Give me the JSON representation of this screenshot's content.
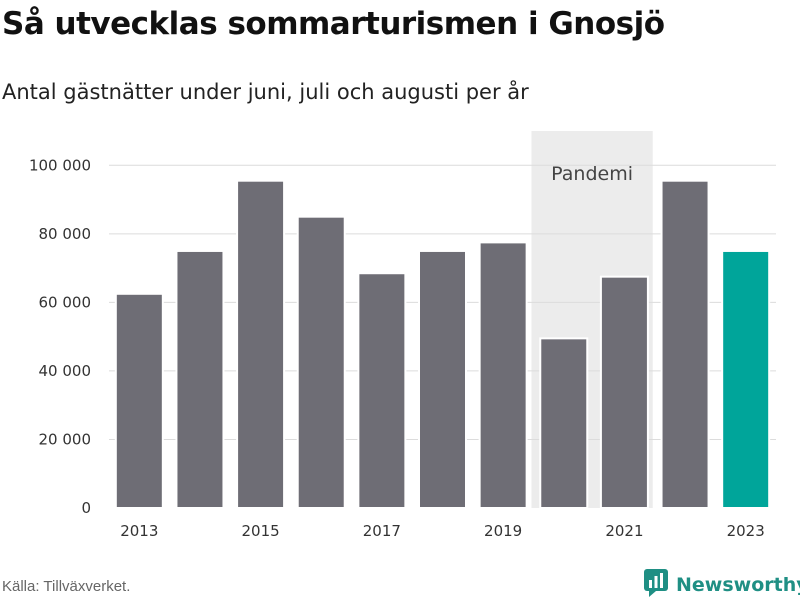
{
  "header": {
    "title": "Så utvecklas sommarturismen i Gnosjö",
    "subtitle": "Antal gästnätter under juni, juli och augusti per år"
  },
  "footer": {
    "source": "Källa: Tillväxverket.",
    "brand": "Newsworthy",
    "brand_icon": "chart-bubble-icon"
  },
  "colors": {
    "bar": "#6e6d75",
    "highlight": "#00a59a",
    "pandemic_band": "#ececec",
    "grid": "#dcdcdc",
    "brand": "#1f8f84"
  },
  "chart_data": {
    "type": "bar",
    "title": "Så utvecklas sommarturismen i Gnosjö",
    "subtitle": "Antal gästnätter under juni, juli och augusti per år",
    "categories": [
      2013,
      2014,
      2015,
      2016,
      2017,
      2018,
      2019,
      2020,
      2021,
      2022,
      2023
    ],
    "values": [
      62500,
      75000,
      95500,
      85000,
      68500,
      75000,
      77500,
      49500,
      67500,
      95500,
      75000
    ],
    "highlight_category": 2023,
    "x_tick_labels": [
      "2013",
      "2015",
      "2017",
      "2019",
      "2021",
      "2023"
    ],
    "y_ticks": [
      0,
      20000,
      40000,
      60000,
      80000,
      100000
    ],
    "y_tick_labels": [
      "0",
      "20 000",
      "40 000",
      "60 000",
      "80 000",
      "100 000"
    ],
    "ylim": [
      0,
      110000
    ],
    "grid": true,
    "xlabel": "",
    "ylabel": "",
    "annotation": {
      "label": "Pandemi",
      "categories": [
        2020,
        2021
      ]
    }
  }
}
